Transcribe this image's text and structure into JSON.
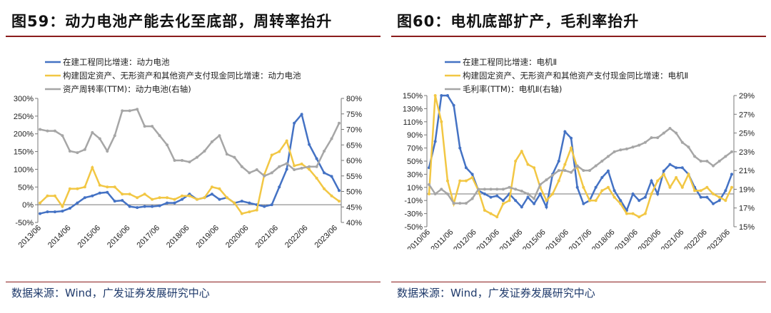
{
  "chart_data": [
    {
      "type": "line",
      "title": "图59：动力电池产能去化至底部，周转率抬升",
      "source": "数据来源：Wind，广发证券发展研究中心",
      "x_ticks": [
        "2013/06",
        "2014/06",
        "2015/06",
        "2016/06",
        "2017/06",
        "2018/06",
        "2019/06",
        "2020/06",
        "2021/06",
        "2022/06",
        "2023/06"
      ],
      "y_left": {
        "ticks": [
          "300%",
          "250%",
          "200%",
          "150%",
          "100%",
          "50%",
          "0%",
          "-50%"
        ],
        "range": [
          -50,
          300
        ]
      },
      "y_right": {
        "ticks": [
          "80%",
          "75%",
          "70%",
          "65%",
          "60%",
          "55%",
          "50%",
          "45%",
          "40%"
        ],
        "range": [
          40,
          80
        ]
      },
      "series": [
        {
          "name": "在建工程同比增速：动力电池",
          "color": "#4472c4",
          "axis": "left",
          "values": [
            -25,
            -20,
            -20,
            -18,
            -10,
            5,
            20,
            25,
            33,
            35,
            10,
            12,
            -5,
            -8,
            -5,
            -5,
            -3,
            5,
            5,
            15,
            30,
            15,
            20,
            30,
            15,
            20,
            5,
            10,
            5,
            0,
            -5,
            0,
            50,
            100,
            230,
            255,
            170,
            130,
            90,
            80,
            40
          ]
        },
        {
          "name": "构建固定资产、无形资产和其他资产支付现金同比增速：动力电池",
          "color": "#f2c744",
          "axis": "left",
          "values": [
            5,
            25,
            25,
            -5,
            45,
            45,
            50,
            105,
            55,
            50,
            50,
            30,
            30,
            20,
            30,
            15,
            20,
            20,
            15,
            25,
            25,
            15,
            20,
            50,
            45,
            20,
            5,
            -25,
            -20,
            -15,
            85,
            140,
            150,
            180,
            110,
            115,
            100,
            75,
            45,
            25,
            10
          ]
        },
        {
          "name": "资产周转率(TTM)：动力电池(右轴)",
          "color": "#a6a6a6",
          "axis": "right",
          "values": [
            70,
            69.5,
            69.5,
            68,
            63,
            62.5,
            63.5,
            69,
            67,
            63,
            68,
            76,
            76,
            76.5,
            71,
            71,
            68,
            65,
            60,
            60,
            59.5,
            61,
            63,
            66,
            68,
            62,
            61,
            58,
            56,
            57,
            55,
            56,
            58,
            59,
            57,
            57.5,
            58,
            58,
            63,
            67,
            72
          ]
        }
      ]
    },
    {
      "type": "line",
      "title": "图60：电机底部扩产，毛利率抬升",
      "source": "数据来源：Wind，广发证券发展研究中心",
      "x_ticks": [
        "2010/06",
        "2011/06",
        "2012/06",
        "2013/06",
        "2014/06",
        "2015/06",
        "2016/06",
        "2017/06",
        "2018/06",
        "2019/06",
        "2020/06",
        "2021/06",
        "2022/06",
        "2023/06"
      ],
      "y_left": {
        "ticks": [
          "150%",
          "130%",
          "110%",
          "90%",
          "70%",
          "50%",
          "30%",
          "10%",
          "-10%",
          "-30%",
          "-50%"
        ],
        "range": [
          -50,
          150
        ]
      },
      "y_right": {
        "ticks": [
          "29%",
          "27%",
          "25%",
          "23%",
          "21%",
          "19%",
          "17%",
          "15%"
        ],
        "range": [
          15,
          29
        ]
      },
      "series": [
        {
          "name": "在建工程同比增速：电机Ⅱ",
          "color": "#4472c4",
          "axis": "left",
          "values": [
            40,
            80,
            150,
            200,
            135,
            70,
            40,
            30,
            5,
            0,
            -5,
            -3,
            -10,
            0,
            -10,
            -20,
            -5,
            -15,
            0,
            -20,
            30,
            50,
            95,
            85,
            10,
            -15,
            -10,
            10,
            25,
            35,
            5,
            -10,
            -25,
            0,
            -10,
            -5,
            20,
            0,
            35,
            45,
            40,
            40,
            30,
            10,
            -5,
            -5,
            -15,
            -10,
            5,
            30
          ]
        },
        {
          "name": "构建固定资产、无形资产和其他资产支付现金同比增速：电机Ⅱ",
          "color": "#f2c744",
          "axis": "left",
          "values": [
            0,
            150,
            110,
            20,
            -15,
            20,
            20,
            25,
            5,
            -25,
            -30,
            -35,
            -15,
            -10,
            50,
            65,
            45,
            40,
            10,
            -10,
            0,
            20,
            45,
            70,
            40,
            10,
            -10,
            -10,
            5,
            10,
            -5,
            -15,
            -30,
            -30,
            -35,
            -30,
            0,
            20,
            30,
            10,
            25,
            10,
            30,
            5,
            5,
            10,
            0,
            -5,
            -10,
            10
          ]
        },
        {
          "name": "毛利率(TTM)：电机Ⅱ(右轴)",
          "color": "#a6a6a6",
          "axis": "right",
          "values": [
            19.5,
            18.5,
            19,
            18.5,
            17.5,
            17.5,
            17.5,
            18,
            19,
            19,
            19,
            19,
            19,
            19.2,
            19,
            18.8,
            18.5,
            18,
            19.5,
            20,
            20.5,
            21,
            21,
            20.8,
            21.5,
            21,
            21,
            21.5,
            22,
            22.5,
            23,
            23.2,
            23.3,
            23.5,
            23.7,
            24,
            24.5,
            24.5,
            25,
            25.5,
            25,
            24,
            23.5,
            22.5,
            22,
            22,
            21.5,
            22,
            22.5,
            23
          ]
        }
      ]
    }
  ]
}
